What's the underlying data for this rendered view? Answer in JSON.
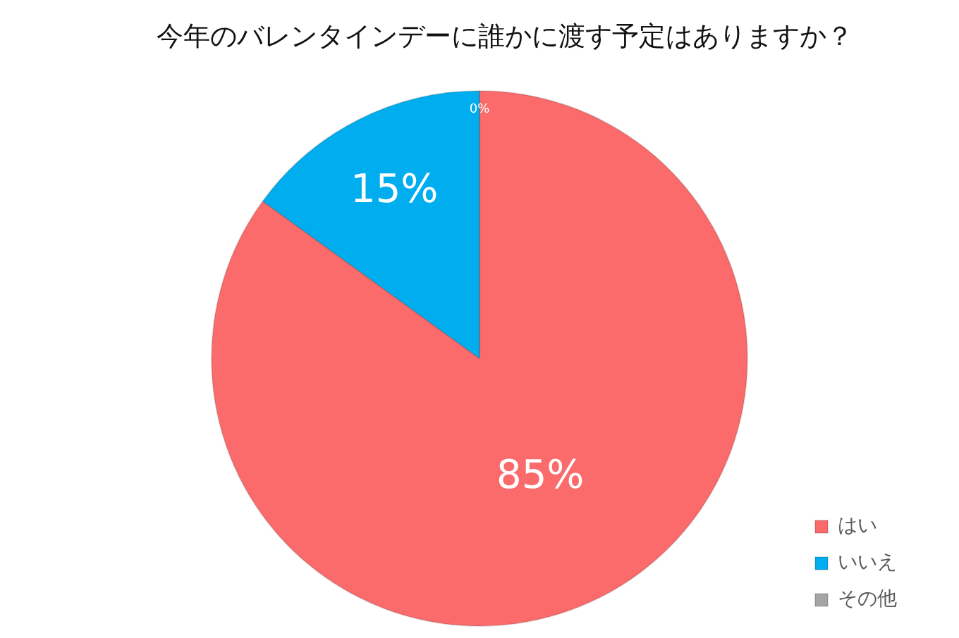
{
  "chart_data": {
    "type": "pie",
    "title": "今年のバレンタインデーに誰かに渡す予定はありますか？",
    "categories": [
      "はい",
      "いいえ",
      "その他"
    ],
    "values": [
      85,
      15,
      0
    ],
    "colors": [
      "#fb6b6b",
      "#00aeef",
      "#a5a5a5"
    ],
    "value_labels": [
      "85%",
      "15%",
      "0%"
    ],
    "legend": "bottom right"
  }
}
